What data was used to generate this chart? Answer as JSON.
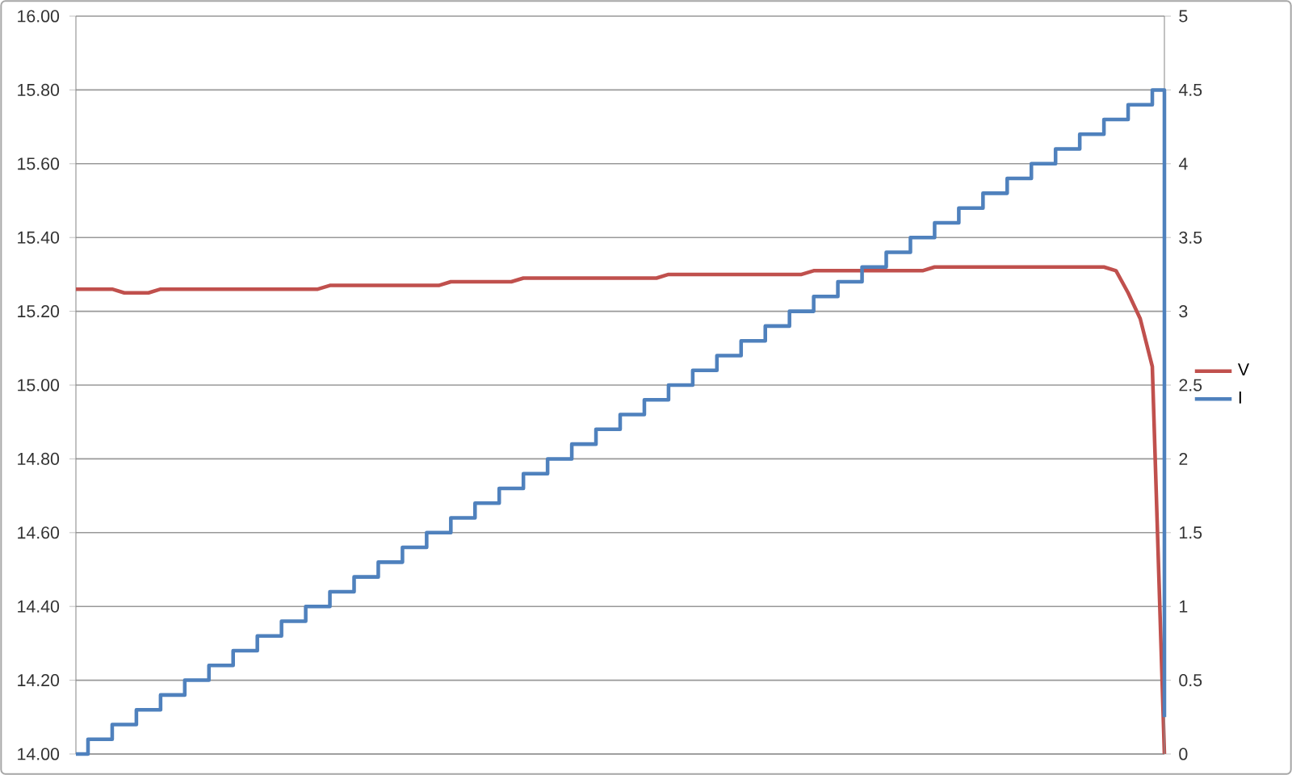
{
  "chart_data": {
    "type": "line",
    "categories": [
      null,
      null,
      null,
      null,
      null,
      null,
      null,
      null,
      null,
      null,
      null,
      null,
      null,
      null,
      null,
      null,
      null,
      null,
      null,
      null,
      null,
      null,
      null,
      null,
      null,
      null,
      null,
      null,
      null,
      null,
      null,
      null,
      null,
      null,
      null,
      null,
      null,
      null,
      null,
      null,
      null,
      null,
      null,
      null,
      null,
      null,
      null,
      null,
      null,
      null,
      null,
      null,
      null,
      null,
      null,
      null,
      null,
      null,
      null,
      null,
      null,
      null,
      null,
      null,
      null,
      null,
      null,
      null,
      null,
      null,
      null,
      null,
      null,
      null,
      null,
      null,
      null,
      null,
      null,
      null,
      null,
      null,
      null,
      null,
      null,
      null,
      null,
      null,
      null,
      null,
      null
    ],
    "series": [
      {
        "name": "V",
        "color": "#c0504d",
        "values": [
          15.26,
          15.26,
          15.26,
          15.26,
          15.25,
          15.25,
          15.25,
          15.26,
          15.26,
          15.26,
          15.26,
          15.26,
          15.26,
          15.26,
          15.26,
          15.26,
          15.26,
          15.26,
          15.26,
          15.26,
          15.26,
          15.27,
          15.27,
          15.27,
          15.27,
          15.27,
          15.27,
          15.27,
          15.27,
          15.27,
          15.27,
          15.28,
          15.28,
          15.28,
          15.28,
          15.28,
          15.28,
          15.29,
          15.29,
          15.29,
          15.29,
          15.29,
          15.29,
          15.29,
          15.29,
          15.29,
          15.29,
          15.29,
          15.29,
          15.3,
          15.3,
          15.3,
          15.3,
          15.3,
          15.3,
          15.3,
          15.3,
          15.3,
          15.3,
          15.3,
          15.3,
          15.31,
          15.31,
          15.31,
          15.31,
          15.31,
          15.31,
          15.31,
          15.31,
          15.31,
          15.31,
          15.32,
          15.32,
          15.32,
          15.32,
          15.32,
          15.32,
          15.32,
          15.32,
          15.32,
          15.32,
          15.32,
          15.32,
          15.32,
          15.32,
          15.32,
          15.31,
          15.25,
          15.18,
          15.05,
          14.0
        ]
      },
      {
        "name": "I",
        "color": "#4f81bd",
        "type": "step",
        "axis": "y2",
        "values": [
          0,
          0.1,
          0.1,
          0.2,
          0.2,
          0.3,
          0.3,
          0.4,
          0.4,
          0.5,
          0.5,
          0.6,
          0.6,
          0.7,
          0.7,
          0.8,
          0.8,
          0.9,
          0.9,
          1.0,
          1.0,
          1.1,
          1.1,
          1.2,
          1.2,
          1.3,
          1.3,
          1.4,
          1.4,
          1.5,
          1.5,
          1.6,
          1.6,
          1.7,
          1.7,
          1.8,
          1.8,
          1.9,
          1.9,
          2.0,
          2.0,
          2.1,
          2.1,
          2.2,
          2.2,
          2.3,
          2.3,
          2.4,
          2.4,
          2.5,
          2.5,
          2.6,
          2.6,
          2.7,
          2.7,
          2.8,
          2.8,
          2.9,
          2.9,
          3.0,
          3.0,
          3.1,
          3.1,
          3.2,
          3.2,
          3.3,
          3.3,
          3.4,
          3.4,
          3.5,
          3.5,
          3.6,
          3.6,
          3.7,
          3.7,
          3.8,
          3.8,
          3.9,
          3.9,
          4.0,
          4.0,
          4.1,
          4.1,
          4.2,
          4.2,
          4.3,
          4.3,
          4.4,
          4.4,
          4.5,
          0.25
        ]
      }
    ],
    "ylim": [
      14,
      16
    ],
    "yticks": [
      {
        "value": 14,
        "label": "14.00"
      },
      {
        "value": 14.2,
        "label": "14.20"
      },
      {
        "value": 14.4,
        "label": "14.40"
      },
      {
        "value": 14.6,
        "label": "14.60"
      },
      {
        "value": 14.8,
        "label": "14.80"
      },
      {
        "value": 15,
        "label": "15.00"
      },
      {
        "value": 15.2,
        "label": "15.20"
      },
      {
        "value": 15.4,
        "label": "15.40"
      },
      {
        "value": 15.6,
        "label": "15.60"
      },
      {
        "value": 15.8,
        "label": "15.80"
      },
      {
        "value": 16,
        "label": "16.00"
      }
    ],
    "y2lim": [
      0,
      5
    ],
    "y2ticks": [
      0,
      0.5,
      1,
      1.5,
      2,
      2.5,
      3,
      3.5,
      4,
      4.5,
      5
    ],
    "grid": "y",
    "legend": "right",
    "tick_labels": "y"
  }
}
